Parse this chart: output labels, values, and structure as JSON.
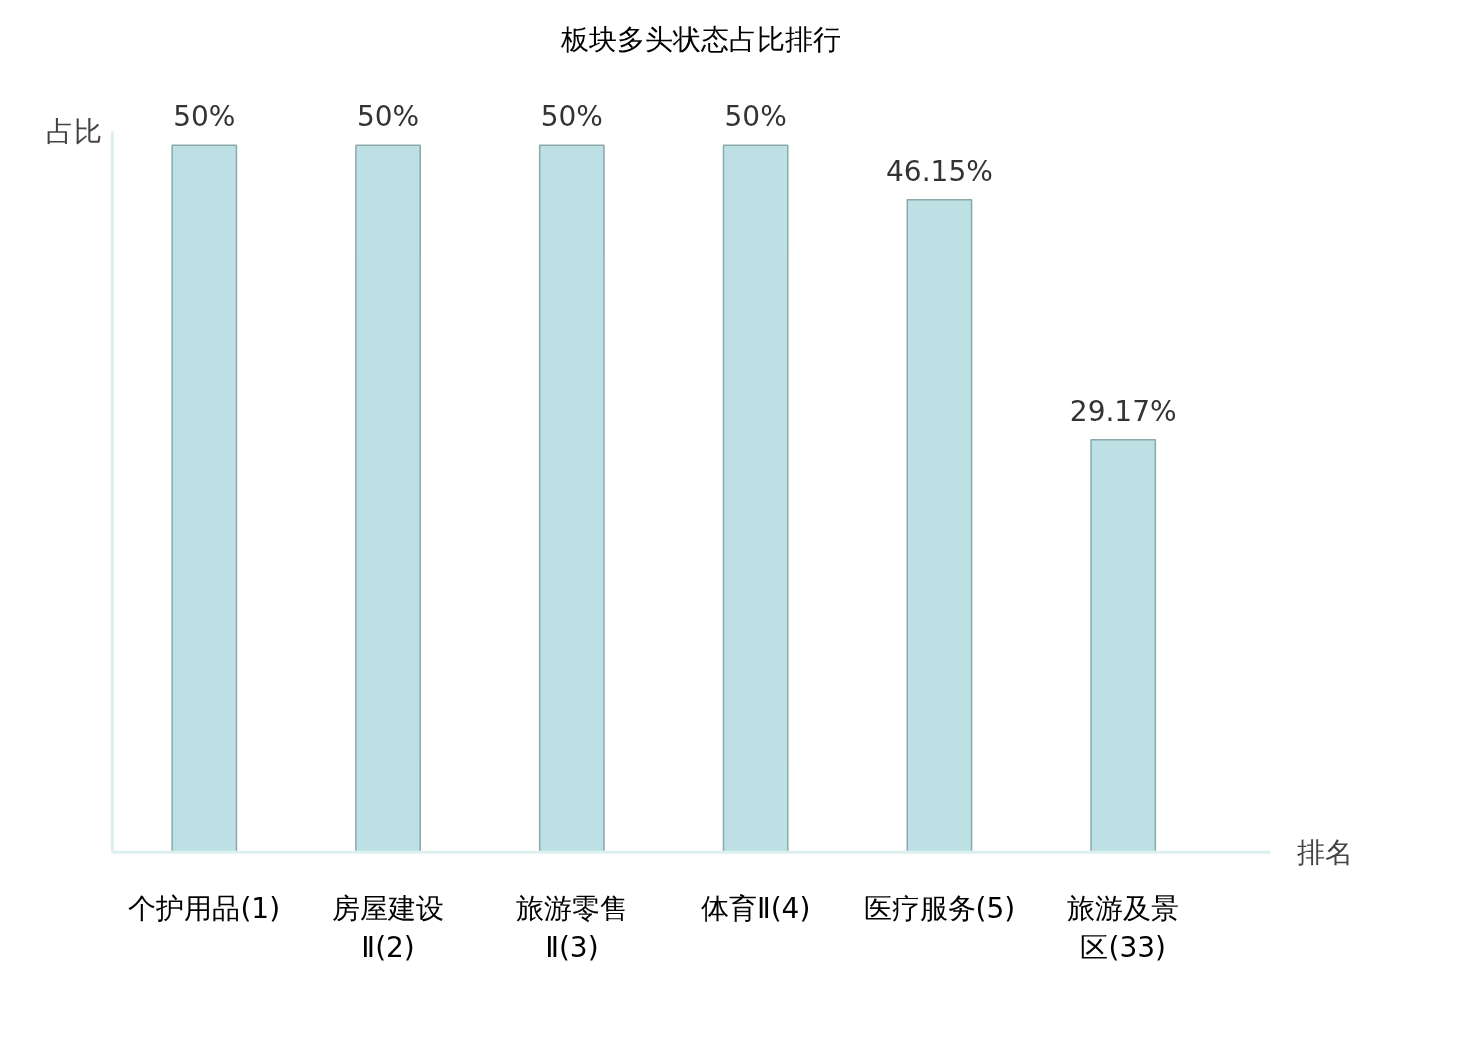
{
  "chart_data": {
    "type": "bar",
    "title": "板块多头状态占比排行",
    "xlabel": "排名",
    "ylabel": "占比",
    "categories": [
      "个护用品(1)",
      "房屋建设Ⅱ(2)",
      "旅游零售Ⅱ(3)",
      "体育Ⅱ(4)",
      "医疗服务(5)",
      "旅游及景区(33)"
    ],
    "values": [
      50,
      50,
      50,
      50,
      46.15,
      29.17
    ],
    "value_labels": [
      "50%",
      "50%",
      "50%",
      "50%",
      "46.15%",
      "29.17%"
    ],
    "color": "#bce0e3",
    "grid": false
  }
}
